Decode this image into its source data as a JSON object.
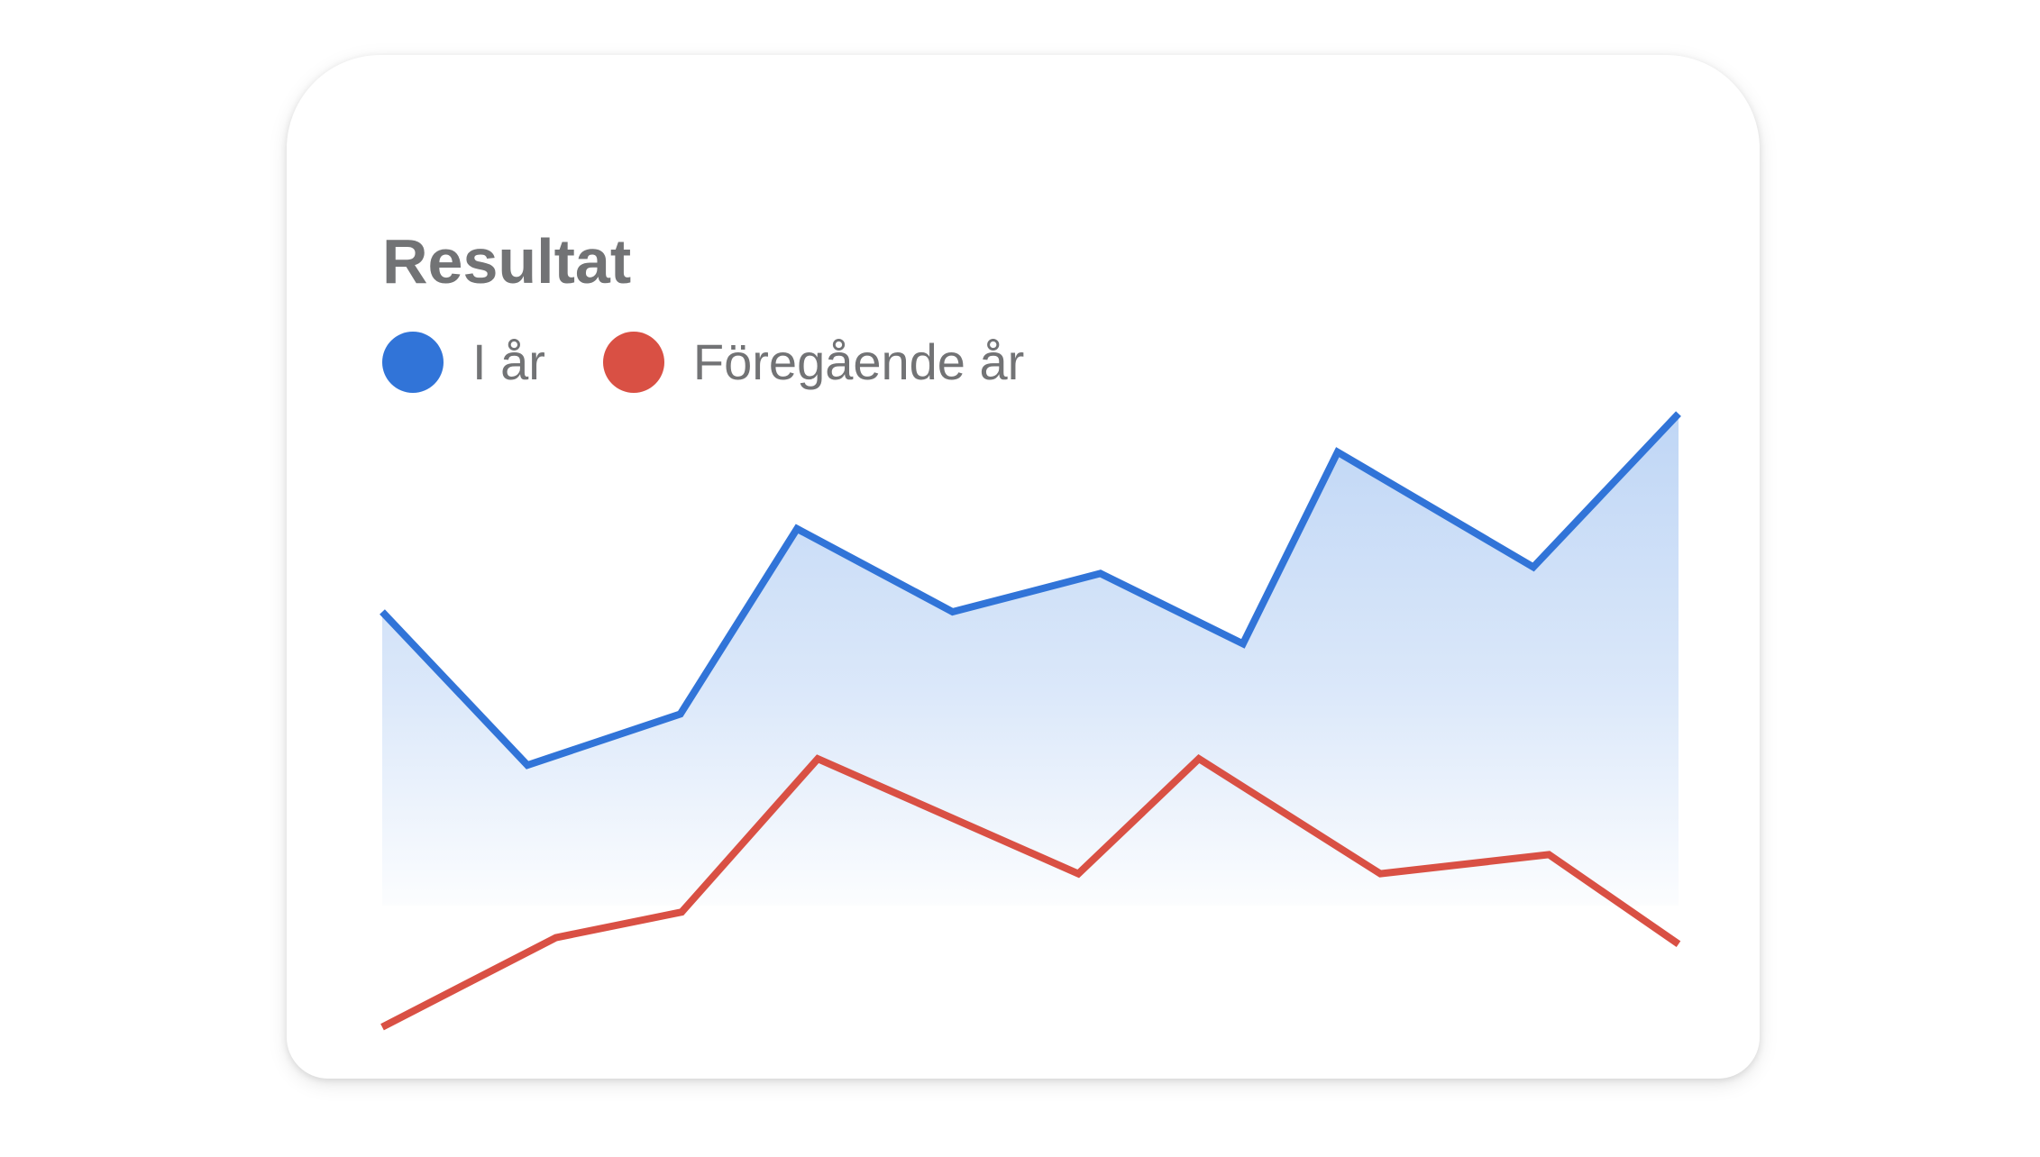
{
  "card": {
    "title": "Resultat"
  },
  "colors": {
    "this_year": "#3174d8",
    "previous_year": "#d95044",
    "area_fill": "#bcd4f5",
    "text": "#727375"
  },
  "chart_data": {
    "type": "line",
    "title": "Resultat",
    "xlabel": "",
    "ylabel": "",
    "grid": false,
    "legend_placement": "top-left",
    "x": [
      0,
      1,
      2,
      3,
      4,
      5,
      6,
      7,
      8,
      9
    ],
    "ylim": [
      0,
      100
    ],
    "series": [
      {
        "name": "I år",
        "color": "#3174d8",
        "fill": true,
        "points": [
          [
            0.0,
            67
          ],
          [
            1.12,
            43
          ],
          [
            2.3,
            51
          ],
          [
            3.2,
            80
          ],
          [
            4.4,
            67
          ],
          [
            5.54,
            73
          ],
          [
            6.64,
            62
          ],
          [
            7.37,
            92
          ],
          [
            8.88,
            74
          ],
          [
            10.0,
            98
          ]
        ]
      },
      {
        "name": "Föregående år",
        "color": "#d95044",
        "fill": false,
        "points": [
          [
            0.0,
            2
          ],
          [
            1.34,
            16
          ],
          [
            2.31,
            20
          ],
          [
            3.36,
            44
          ],
          [
            5.37,
            26
          ],
          [
            6.3,
            44
          ],
          [
            7.7,
            26
          ],
          [
            9.0,
            29
          ],
          [
            10.0,
            15
          ]
        ]
      }
    ]
  }
}
